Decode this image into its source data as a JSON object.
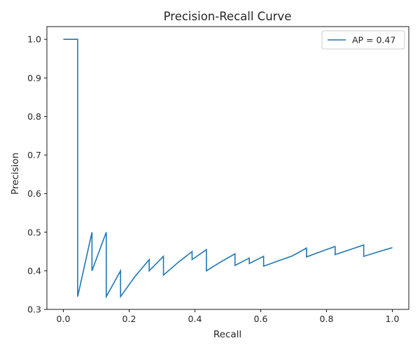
{
  "chart_data": {
    "type": "line",
    "title": "Precision-Recall Curve",
    "xlabel": "Recall",
    "ylabel": "Precision",
    "xlim": [
      -0.05,
      1.05
    ],
    "ylim": [
      0.3,
      1.033
    ],
    "xticks": [
      0.0,
      0.2,
      0.4,
      0.6,
      0.8,
      1.0
    ],
    "xtick_labels": [
      "0.0",
      "0.2",
      "0.4",
      "0.6",
      "0.8",
      "1.0"
    ],
    "yticks": [
      0.3,
      0.4,
      0.5,
      0.6,
      0.7,
      0.8,
      0.9,
      1.0
    ],
    "ytick_labels": [
      "0.3",
      "0.4",
      "0.5",
      "0.6",
      "0.7",
      "0.8",
      "0.9",
      "1.0"
    ],
    "grid": false,
    "legend_position": "top-right",
    "colors": {
      "line": "#1f77b4",
      "axis": "#000000",
      "text": "#262626"
    },
    "series": [
      {
        "name": "AP = 0.47",
        "x": [
          0.0,
          0.0435,
          0.0435,
          0.087,
          0.087,
          0.1304,
          0.1304,
          0.1739,
          0.1739,
          0.2174,
          0.2609,
          0.2609,
          0.3043,
          0.3043,
          0.3478,
          0.3913,
          0.3913,
          0.4348,
          0.4348,
          0.4783,
          0.5217,
          0.5217,
          0.5652,
          0.5652,
          0.6087,
          0.6087,
          0.6522,
          0.6957,
          0.7391,
          0.7391,
          0.7826,
          0.8261,
          0.8261,
          0.8696,
          0.913,
          0.913,
          0.9565,
          1.0
        ],
        "y": [
          1.0,
          1.0,
          0.333,
          0.5,
          0.4,
          0.5,
          0.333,
          0.4,
          0.333,
          0.385,
          0.429,
          0.4,
          0.4375,
          0.389,
          0.421,
          0.45,
          0.429,
          0.455,
          0.4,
          0.423,
          0.444,
          0.414,
          0.433,
          0.419,
          0.4375,
          0.412,
          0.4255,
          0.4386,
          0.459,
          0.436,
          0.45,
          0.463,
          0.442,
          0.4545,
          0.467,
          0.4375,
          0.449,
          0.46
        ]
      }
    ]
  }
}
